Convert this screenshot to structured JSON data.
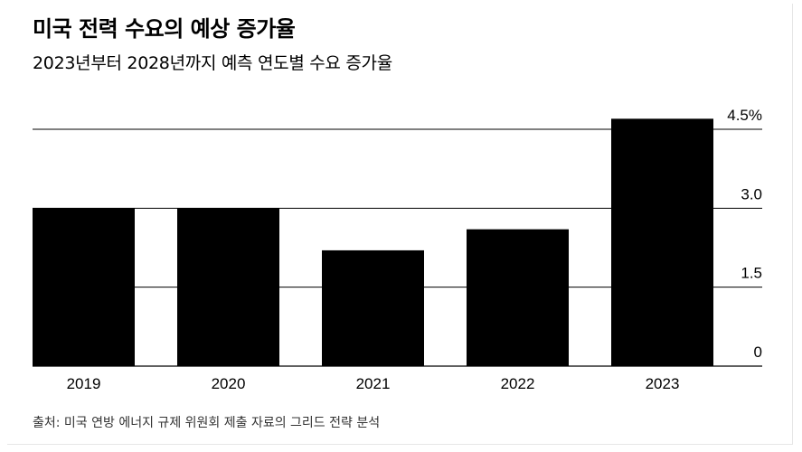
{
  "title": "미국 전력 수요의 예상 증가율",
  "subtitle": "2023년부터 2028년까지 예측 연도별 수요 증가율",
  "source": "출처: 미국 연방 에너지 규제 위원회 제출 자료의 그리드 전략 분석",
  "colors": {
    "bar": "#000000",
    "grid": "#000000",
    "background": "#ffffff"
  },
  "chart_data": {
    "type": "bar",
    "categories": [
      "2019",
      "2020",
      "2021",
      "2022",
      "2023"
    ],
    "values": [
      3.0,
      3.0,
      2.2,
      2.6,
      4.7
    ],
    "ylim": [
      0,
      4.5
    ],
    "yticks": [
      0,
      1.5,
      3.0,
      4.5
    ],
    "ytick_labels": [
      "0",
      "1.5",
      "3.0",
      "4.5%"
    ],
    "grid": true,
    "y_axis_position": "right"
  }
}
